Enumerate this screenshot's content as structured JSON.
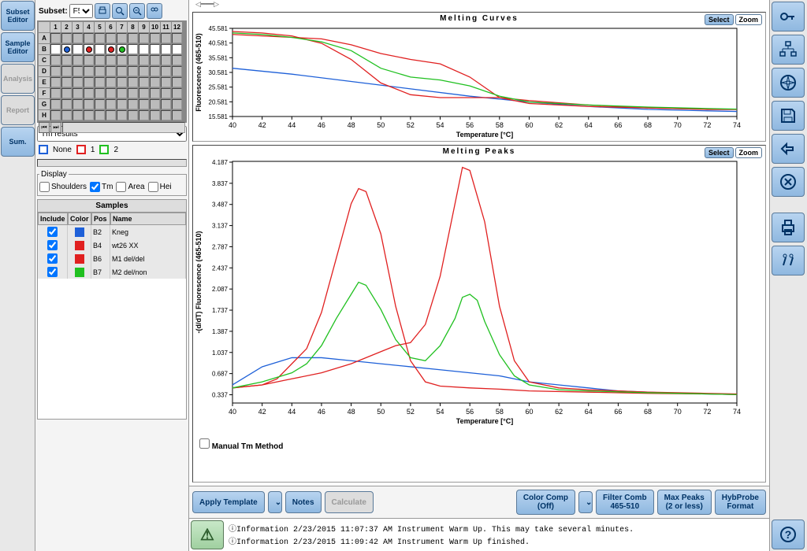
{
  "left_tabs": [
    {
      "id": "subset-editor",
      "label": "Subset Editor",
      "disabled": false
    },
    {
      "id": "sample-editor",
      "label": "Sample Editor",
      "disabled": false
    },
    {
      "id": "analysis",
      "label": "Analysis",
      "disabled": true
    },
    {
      "id": "report",
      "label": "Report",
      "disabled": true
    },
    {
      "id": "sum",
      "label": "Sum.",
      "disabled": false
    }
  ],
  "subset": {
    "label": "Subset:",
    "value": "F5"
  },
  "well_plate": {
    "cols": [
      "1",
      "2",
      "3",
      "4",
      "5",
      "6",
      "7",
      "8",
      "9",
      "10",
      "11",
      "12"
    ],
    "rows": [
      "A",
      "B",
      "C",
      "D",
      "E",
      "F",
      "G",
      "H"
    ],
    "selected_row": "B",
    "dots": [
      {
        "pos": "B2",
        "color": "#1e60d8"
      },
      {
        "pos": "B4",
        "color": "#e02020"
      },
      {
        "pos": "B6",
        "color": "#e02020"
      },
      {
        "pos": "B7",
        "color": "#20c020"
      }
    ]
  },
  "dropdown_value": "Tm results",
  "legend": [
    {
      "label": "None",
      "color": "#1e60d8"
    },
    {
      "label": "1",
      "color": "#e02020"
    },
    {
      "label": "2",
      "color": "#20c020"
    }
  ],
  "display": {
    "title": "Display",
    "checks": [
      {
        "label": "Shoulders",
        "checked": false
      },
      {
        "label": "Tm",
        "checked": true
      },
      {
        "label": "Area",
        "checked": false
      },
      {
        "label": "Hei",
        "checked": false
      }
    ]
  },
  "samples": {
    "title": "Samples",
    "columns": [
      "Include",
      "Color",
      "Pos",
      "Name"
    ],
    "rows": [
      {
        "include": true,
        "color": "#1e60d8",
        "pos": "B2",
        "name": "Kneg"
      },
      {
        "include": true,
        "color": "#e02020",
        "pos": "B4",
        "name": "wt26 XX"
      },
      {
        "include": true,
        "color": "#e02020",
        "pos": "B6",
        "name": "M1 del/del"
      },
      {
        "include": true,
        "color": "#20c020",
        "pos": "B7",
        "name": "M2 del/non"
      }
    ]
  },
  "chart1": {
    "title": "Melting Curves",
    "ylabel": "Fluorescence (465-510)",
    "xlabel": "Temperature [°C]",
    "xlim": [
      40,
      74
    ],
    "ylim": [
      15.581,
      45.581
    ],
    "xticks": [
      40,
      42,
      44,
      46,
      48,
      50,
      52,
      54,
      56,
      58,
      60,
      62,
      64,
      66,
      68,
      70,
      72,
      74
    ],
    "yticks": [
      15.581,
      20.581,
      25.581,
      30.581,
      35.581,
      40.581,
      45.581
    ],
    "plot_bg": "#ffffff",
    "grid_color": "#e0e0e0",
    "series": [
      {
        "color": "#1e60d8",
        "pts": [
          [
            40,
            32
          ],
          [
            44,
            30
          ],
          [
            48,
            27.5
          ],
          [
            52,
            25
          ],
          [
            56,
            22.5
          ],
          [
            60,
            20.5
          ],
          [
            64,
            19
          ],
          [
            68,
            18
          ],
          [
            72,
            17.5
          ],
          [
            74,
            17.3
          ]
        ]
      },
      {
        "color": "#e02020",
        "pts": [
          [
            40,
            44.5
          ],
          [
            42,
            44
          ],
          [
            44,
            43
          ],
          [
            46,
            40.5
          ],
          [
            48,
            35
          ],
          [
            50,
            27
          ],
          [
            52,
            23
          ],
          [
            54,
            22
          ],
          [
            56,
            22
          ],
          [
            58,
            22
          ],
          [
            60,
            21
          ],
          [
            64,
            19.5
          ],
          [
            68,
            18.5
          ],
          [
            72,
            18
          ],
          [
            74,
            18
          ]
        ]
      },
      {
        "color": "#e02020",
        "pts": [
          [
            40,
            43.5
          ],
          [
            42,
            43
          ],
          [
            44,
            42.5
          ],
          [
            46,
            42
          ],
          [
            48,
            40
          ],
          [
            50,
            37
          ],
          [
            52,
            35
          ],
          [
            54,
            33.5
          ],
          [
            56,
            29
          ],
          [
            58,
            22
          ],
          [
            60,
            20
          ],
          [
            64,
            19
          ],
          [
            68,
            18.5
          ],
          [
            72,
            18
          ],
          [
            74,
            18
          ]
        ]
      },
      {
        "color": "#20c020",
        "pts": [
          [
            40,
            44
          ],
          [
            42,
            43.5
          ],
          [
            44,
            42.5
          ],
          [
            46,
            41
          ],
          [
            48,
            38
          ],
          [
            50,
            32
          ],
          [
            52,
            29
          ],
          [
            54,
            28
          ],
          [
            56,
            26
          ],
          [
            58,
            22.5
          ],
          [
            60,
            20.5
          ],
          [
            64,
            19.5
          ],
          [
            68,
            18.8
          ],
          [
            72,
            18.3
          ],
          [
            74,
            18.1
          ]
        ]
      }
    ]
  },
  "chart2": {
    "title": "Melting Peaks",
    "ylabel": "-(d/dT) Fluorescence (465-510)",
    "xlabel": "Temperature [°C]",
    "xlim": [
      40,
      74
    ],
    "ylim": [
      0.2,
      4.2
    ],
    "xticks": [
      40,
      42,
      44,
      46,
      48,
      50,
      52,
      54,
      56,
      58,
      60,
      62,
      64,
      66,
      68,
      70,
      72,
      74
    ],
    "yticks": [
      0.337,
      0.687,
      1.037,
      1.387,
      1.737,
      2.087,
      2.437,
      2.787,
      3.137,
      3.487,
      3.837,
      4.187
    ],
    "plot_bg": "#ffffff",
    "series": [
      {
        "color": "#1e60d8",
        "pts": [
          [
            40,
            0.5
          ],
          [
            42,
            0.8
          ],
          [
            44,
            0.95
          ],
          [
            46,
            0.95
          ],
          [
            48,
            0.9
          ],
          [
            50,
            0.85
          ],
          [
            52,
            0.8
          ],
          [
            54,
            0.75
          ],
          [
            56,
            0.7
          ],
          [
            58,
            0.65
          ],
          [
            60,
            0.55
          ],
          [
            62,
            0.5
          ],
          [
            64,
            0.45
          ],
          [
            66,
            0.4
          ],
          [
            68,
            0.38
          ],
          [
            70,
            0.36
          ],
          [
            72,
            0.35
          ],
          [
            74,
            0.34
          ]
        ]
      },
      {
        "color": "#e02020",
        "pts": [
          [
            40,
            0.45
          ],
          [
            42,
            0.5
          ],
          [
            43,
            0.6
          ],
          [
            44,
            0.85
          ],
          [
            45,
            1.1
          ],
          [
            46,
            1.7
          ],
          [
            47,
            2.6
          ],
          [
            48,
            3.5
          ],
          [
            48.5,
            3.75
          ],
          [
            49,
            3.7
          ],
          [
            50,
            3.0
          ],
          [
            51,
            1.8
          ],
          [
            52,
            0.9
          ],
          [
            53,
            0.55
          ],
          [
            54,
            0.48
          ],
          [
            56,
            0.45
          ],
          [
            58,
            0.43
          ],
          [
            60,
            0.4
          ],
          [
            64,
            0.38
          ],
          [
            68,
            0.36
          ],
          [
            72,
            0.35
          ],
          [
            74,
            0.34
          ]
        ]
      },
      {
        "color": "#e02020",
        "pts": [
          [
            40,
            0.45
          ],
          [
            42,
            0.5
          ],
          [
            44,
            0.6
          ],
          [
            46,
            0.7
          ],
          [
            48,
            0.85
          ],
          [
            50,
            1.05
          ],
          [
            51,
            1.15
          ],
          [
            52,
            1.2
          ],
          [
            53,
            1.5
          ],
          [
            54,
            2.3
          ],
          [
            55,
            3.5
          ],
          [
            55.5,
            4.1
          ],
          [
            56,
            4.05
          ],
          [
            57,
            3.2
          ],
          [
            58,
            1.8
          ],
          [
            59,
            0.9
          ],
          [
            60,
            0.55
          ],
          [
            62,
            0.45
          ],
          [
            64,
            0.42
          ],
          [
            68,
            0.38
          ],
          [
            72,
            0.36
          ],
          [
            74,
            0.35
          ]
        ]
      },
      {
        "color": "#20c020",
        "pts": [
          [
            40,
            0.45
          ],
          [
            42,
            0.55
          ],
          [
            44,
            0.7
          ],
          [
            45,
            0.85
          ],
          [
            46,
            1.15
          ],
          [
            47,
            1.6
          ],
          [
            48,
            2.0
          ],
          [
            48.5,
            2.2
          ],
          [
            49,
            2.15
          ],
          [
            50,
            1.75
          ],
          [
            51,
            1.25
          ],
          [
            52,
            0.95
          ],
          [
            53,
            0.9
          ],
          [
            54,
            1.15
          ],
          [
            55,
            1.6
          ],
          [
            55.5,
            1.95
          ],
          [
            56,
            2.0
          ],
          [
            56.5,
            1.9
          ],
          [
            57,
            1.55
          ],
          [
            58,
            1.0
          ],
          [
            59,
            0.65
          ],
          [
            60,
            0.5
          ],
          [
            62,
            0.42
          ],
          [
            64,
            0.4
          ],
          [
            68,
            0.37
          ],
          [
            72,
            0.35
          ],
          [
            74,
            0.34
          ]
        ]
      }
    ]
  },
  "manual_tm": {
    "label": "Manual Tm Method",
    "checked": false
  },
  "bottom_buttons": {
    "apply_template": "Apply Template",
    "notes": "Notes",
    "calculate": "Calculate",
    "color_comp": {
      "line1": "Color Comp",
      "line2": "(Off)"
    },
    "filter_comb": {
      "line1": "Filter Comb",
      "line2": "465-510"
    },
    "max_peaks": {
      "line1": "Max Peaks",
      "line2": "(2 or less)"
    },
    "hybprobe": {
      "line1": "HybProbe",
      "line2": "Format"
    }
  },
  "log": [
    {
      "icon": "ⓘ",
      "type": "Information",
      "ts": "2/23/2015  11:07:37 AM",
      "msg": "Instrument Warm Up. This may take several minutes."
    },
    {
      "icon": "ⓘ",
      "type": "Information",
      "ts": "2/23/2015  11:09:42 AM",
      "msg": "Instrument Warm Up finished."
    }
  ],
  "chart_buttons": {
    "select": "Select",
    "zoom": "Zoom"
  }
}
